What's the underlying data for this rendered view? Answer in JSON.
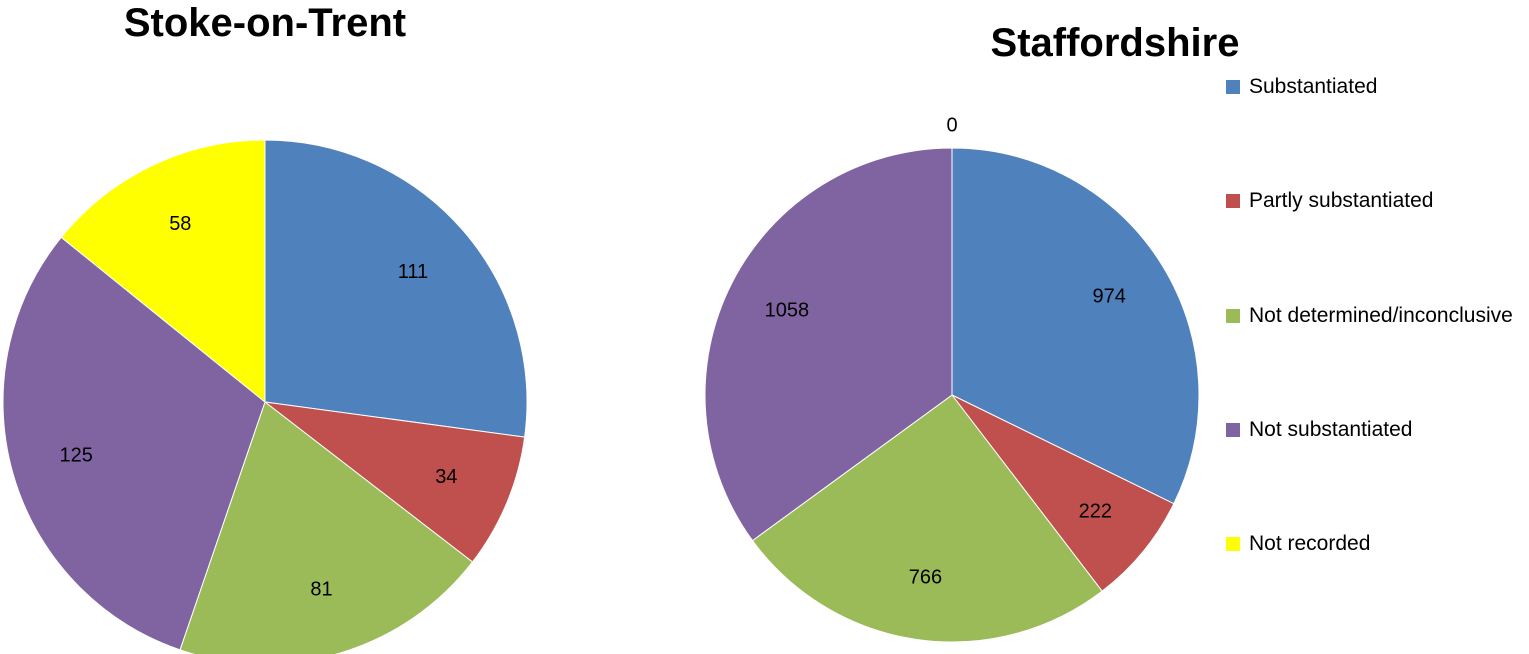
{
  "chart_data": [
    {
      "type": "pie",
      "title": "Stoke-on-Trent",
      "values": [
        111,
        34,
        81,
        125,
        58
      ],
      "colors": [
        "#4f81bd",
        "#c0504d",
        "#9bbb59",
        "#8064a2",
        "#ffff00"
      ]
    },
    {
      "type": "pie",
      "title": "Staffordshire",
      "categories": [
        "Substantiated",
        "Partly substantiated",
        "Not determined/inconclusive",
        "Not substantiated",
        "Not recorded"
      ],
      "values": [
        974,
        222,
        766,
        1058,
        0
      ],
      "colors": [
        "#4f81bd",
        "#c0504d",
        "#9bbb59",
        "#8064a2",
        "#ffff00"
      ],
      "legend": "right"
    }
  ]
}
